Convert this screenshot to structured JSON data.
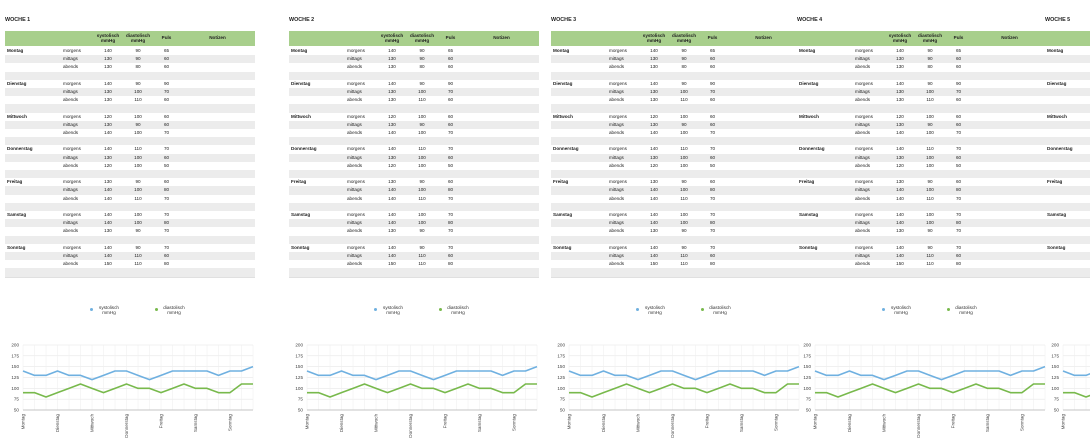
{
  "weeks": [
    {
      "title": "WOCHE 1"
    },
    {
      "title": "WOCHE 2"
    },
    {
      "title": "WOCHE 3"
    },
    {
      "title": "WOCHE 4"
    },
    {
      "title": "WOCHE 5"
    }
  ],
  "headers": [
    "systolisch mmHg",
    "diastolisch mmHg",
    "Puls",
    "Notizen"
  ],
  "days": [
    {
      "name": "Montag",
      "readings": [
        {
          "time": "morgens",
          "values": [
            140,
            90,
            65
          ]
        },
        {
          "time": "mittags",
          "values": [
            130,
            90,
            60
          ]
        },
        {
          "time": "abends",
          "values": [
            130,
            80,
            60
          ]
        }
      ]
    },
    {
      "name": "Dienstag",
      "readings": [
        {
          "time": "morgens",
          "values": [
            140,
            90,
            90
          ]
        },
        {
          "time": "mittags",
          "values": [
            130,
            100,
            70
          ]
        },
        {
          "time": "abends",
          "values": [
            130,
            110,
            60
          ]
        }
      ]
    },
    {
      "name": "Mittwoch",
      "readings": [
        {
          "time": "morgens",
          "values": [
            120,
            100,
            60
          ]
        },
        {
          "time": "mittags",
          "values": [
            130,
            90,
            60
          ]
        },
        {
          "time": "abends",
          "values": [
            140,
            100,
            70
          ]
        }
      ]
    },
    {
      "name": "Donnerstag",
      "readings": [
        {
          "time": "morgens",
          "values": [
            140,
            110,
            70
          ]
        },
        {
          "time": "mittags",
          "values": [
            130,
            100,
            60
          ]
        },
        {
          "time": "abends",
          "values": [
            120,
            100,
            50
          ]
        }
      ]
    },
    {
      "name": "Freitag",
      "readings": [
        {
          "time": "morgens",
          "values": [
            130,
            90,
            60
          ]
        },
        {
          "time": "mittags",
          "values": [
            140,
            100,
            80
          ]
        },
        {
          "time": "abends",
          "values": [
            140,
            110,
            70
          ]
        }
      ]
    },
    {
      "name": "Samstag",
      "readings": [
        {
          "time": "morgens",
          "values": [
            140,
            100,
            70
          ]
        },
        {
          "time": "mittags",
          "values": [
            140,
            100,
            80
          ]
        },
        {
          "time": "abends",
          "values": [
            130,
            90,
            70
          ]
        }
      ]
    },
    {
      "name": "Sonntag",
      "readings": [
        {
          "time": "morgens",
          "values": [
            140,
            90,
            70
          ]
        },
        {
          "time": "mittags",
          "values": [
            140,
            110,
            60
          ]
        },
        {
          "time": "abends",
          "values": [
            150,
            110,
            80
          ]
        }
      ]
    }
  ],
  "chart": {
    "type": "line",
    "ylim": [
      50,
      200
    ],
    "yticks": [
      50,
      75,
      100,
      125,
      150,
      175,
      200
    ],
    "series": [
      {
        "name": "systolisch mmHg",
        "color": "#6fb0e0"
      },
      {
        "name": "diastolisch mmHg",
        "color": "#78b94c"
      }
    ]
  }
}
